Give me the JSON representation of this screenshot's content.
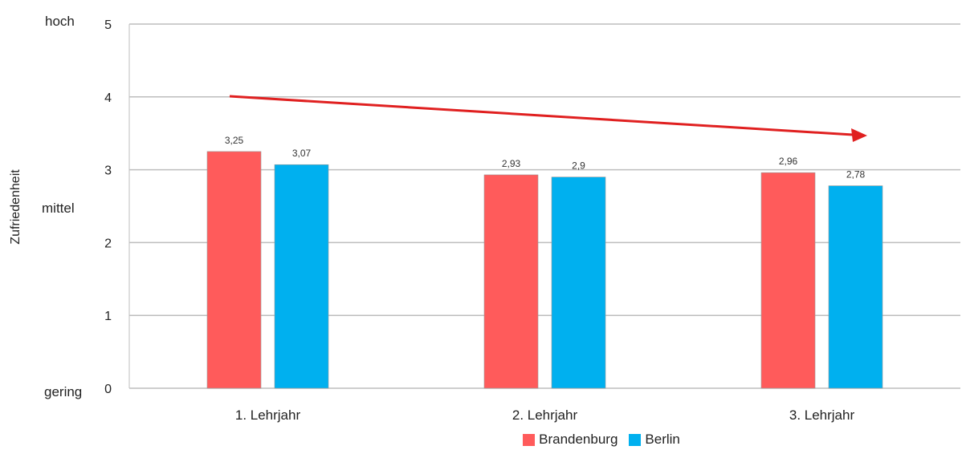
{
  "chart_data": {
    "type": "bar",
    "categories": [
      "1. Lehrjahr",
      "2. Lehrjahr",
      "3. Lehrjahr"
    ],
    "series": [
      {
        "name": "Brandenburg",
        "values": [
          3.25,
          2.93,
          2.96
        ],
        "labels": [
          "3,25",
          "2,93",
          "2,96"
        ],
        "color": "#ff5b5b"
      },
      {
        "name": "Berlin",
        "values": [
          3.07,
          2.9,
          2.78
        ],
        "labels": [
          "3,07",
          "2,9",
          "2,78"
        ],
        "color": "#00b0ef"
      }
    ],
    "ylabel": "Zufriedenheit",
    "ylim": [
      0,
      5
    ],
    "yticks": [
      "0",
      "1",
      "2",
      "3",
      "4",
      "5"
    ],
    "qualitative_labels": {
      "high": "hoch",
      "mid": "mittel",
      "low": "gering"
    },
    "trend_arrow_color": "#e02020",
    "grid": true,
    "legend_position": "bottom"
  }
}
